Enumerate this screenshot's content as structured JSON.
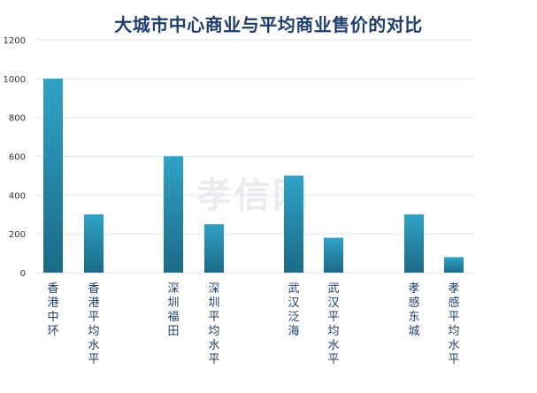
{
  "chart_data": {
    "type": "bar",
    "title": "大城市中心商业与平均商业售价的对比",
    "categories": [
      "香港中环",
      "香港平均水平",
      "深圳福田",
      "深圳平均水平",
      "武汉泛海",
      "武汉平均水平",
      "孝感东城",
      "孝感平均水平"
    ],
    "values": [
      1000,
      300,
      600,
      250,
      500,
      180,
      300,
      80
    ],
    "ylim": [
      0,
      1200
    ],
    "yticks": [
      0,
      200,
      400,
      600,
      800,
      1000,
      1200
    ],
    "grid": true,
    "legend": "none",
    "colors": {
      "bar_top": "#2fa3c6",
      "bar_bottom": "#1c6a87",
      "grid": "#d9e6ee",
      "title": "#1f3d6b"
    }
  },
  "watermark": "孝信网"
}
